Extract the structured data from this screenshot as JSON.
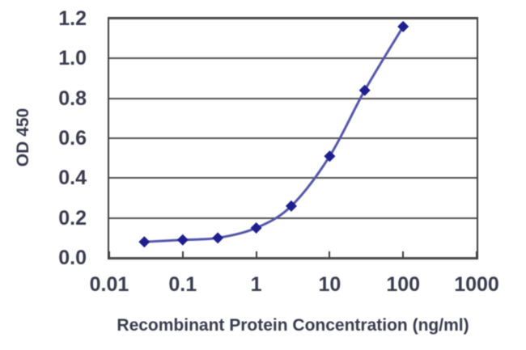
{
  "chart_data": {
    "type": "line",
    "title": "",
    "xlabel": "Recombinant Protein Concentration (ng/ml)",
    "ylabel": "OD 450",
    "x_scale": "log",
    "x": [
      0.03,
      0.1,
      0.3,
      1,
      3,
      10,
      30,
      100
    ],
    "series": [
      {
        "name": "OD 450",
        "values": [
          0.08,
          0.09,
          0.1,
          0.15,
          0.26,
          0.51,
          0.84,
          1.16
        ]
      }
    ],
    "xlim": [
      0.01,
      1000
    ],
    "ylim": [
      0,
      1.2
    ],
    "xticks": [
      "0.01",
      "0.1",
      "1",
      "10",
      "100",
      "1000"
    ],
    "yticks": [
      "0.0",
      "0.2",
      "0.4",
      "0.6",
      "0.8",
      "1.0",
      "1.2"
    ],
    "grid": "horizontal",
    "legend": "none",
    "marker": "diamond",
    "colors": {
      "line": "#5454aa",
      "marker": "#1e1e8e",
      "grid": "#4f4f4f",
      "frame": "#3a3a3a",
      "text": "#3a3a4e",
      "background": "#ffffff"
    }
  }
}
